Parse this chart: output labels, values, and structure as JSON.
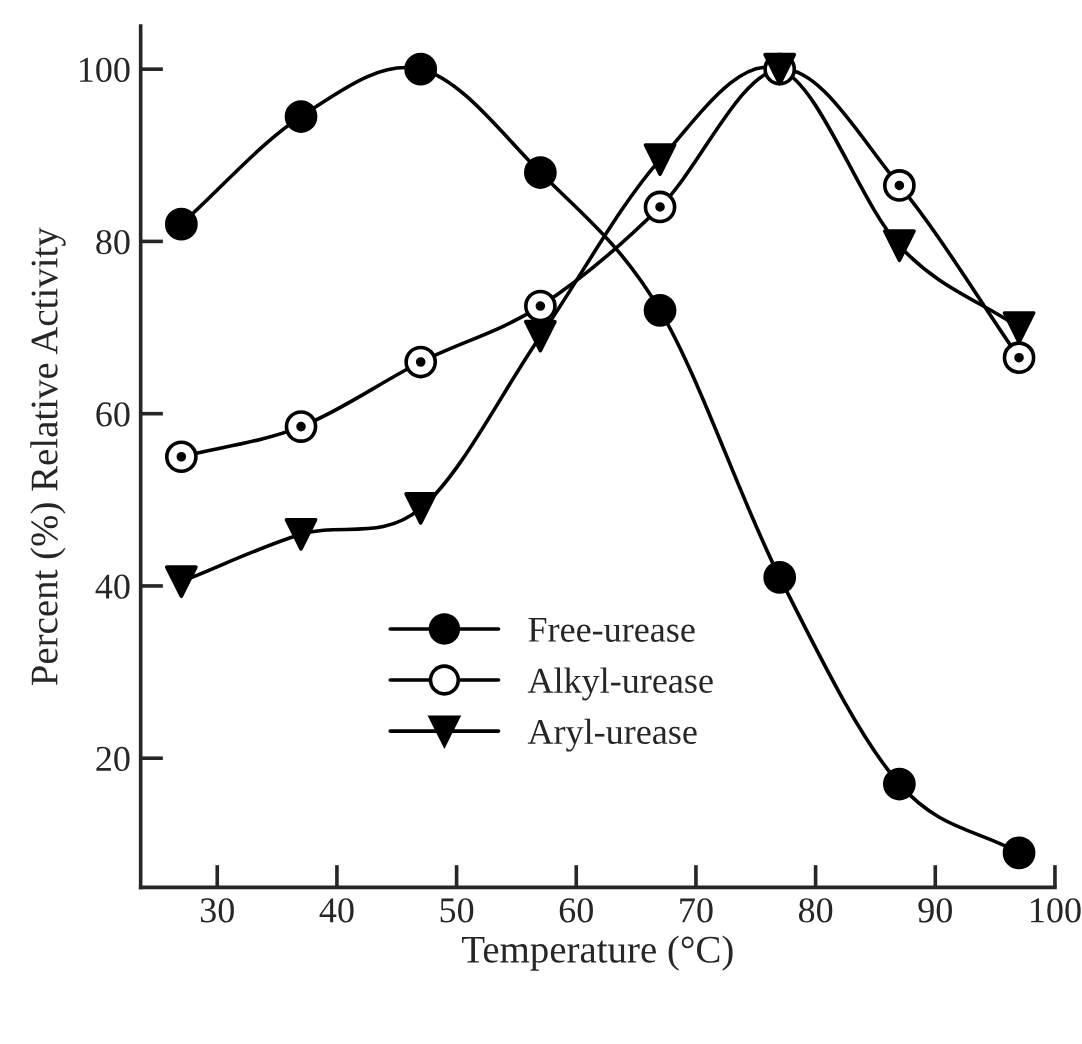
{
  "chart_data": {
    "type": "line",
    "xlabel": "Temperature (°C)",
    "ylabel": "Percent (%) Relative Activity",
    "x": [
      27,
      37,
      47,
      57,
      67,
      77,
      87,
      97
    ],
    "series": [
      {
        "name": "Free-urease",
        "color": "#000000",
        "marker": "circle",
        "values": [
          82,
          94.5,
          100,
          88,
          72,
          41,
          17,
          9
        ]
      },
      {
        "name": "Alkyl-urease",
        "color": "#ffffff",
        "marker": "circle",
        "values": [
          55,
          58.5,
          66,
          72.5,
          84,
          100,
          86.5,
          66.5
        ]
      },
      {
        "name": "Aryl-urease",
        "color": "#000000",
        "marker": "triangle",
        "values": [
          40.5,
          46,
          49,
          69,
          89.5,
          100,
          79.5,
          70
        ]
      }
    ],
    "xlim": [
      23.6,
      100
    ],
    "ylim": [
      5,
      105
    ],
    "xticks": [
      30,
      40,
      50,
      60,
      70,
      80,
      90,
      100
    ],
    "yticks": [
      20,
      40,
      60,
      80,
      100
    ],
    "legend": "lower center",
    "grid": false
  }
}
